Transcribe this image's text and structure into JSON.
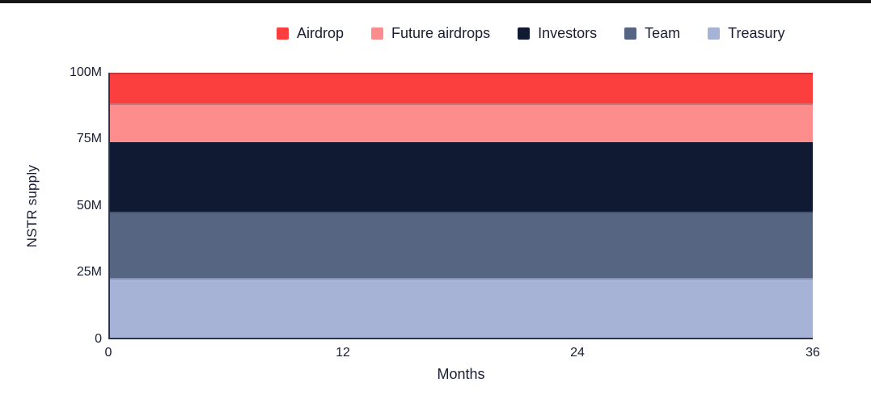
{
  "page": {
    "background": "#ffffff",
    "top_bar_color": "#161616",
    "text_color": "#1A1D33",
    "axis_color": "#2B3252"
  },
  "chart_data": {
    "type": "area",
    "stacked": true,
    "title": "",
    "xlabel": "Months",
    "ylabel": "NSTR supply",
    "x": [
      0,
      12,
      24,
      36
    ],
    "xlim": [
      0,
      36
    ],
    "ylim_millions": [
      0,
      100
    ],
    "value_unit": "M",
    "grid": false,
    "legend_position": "top",
    "series": [
      {
        "name": "Airdrop",
        "color": "#FB3E3E",
        "values": [
          11.7,
          11.7,
          11.7,
          11.7
        ]
      },
      {
        "name": "Future airdrops",
        "color": "#FD8D8D",
        "values": [
          14.4,
          14.4,
          14.4,
          14.4
        ]
      },
      {
        "name": "Investors",
        "color": "#101A33",
        "values": [
          26.3,
          26.3,
          26.3,
          26.3
        ]
      },
      {
        "name": "Team",
        "color": "#566581",
        "values": [
          25.0,
          25.0,
          25.0,
          25.0
        ]
      },
      {
        "name": "Treasury",
        "color": "#A6B3D7",
        "values": [
          22.6,
          22.6,
          22.6,
          22.6
        ]
      }
    ],
    "yticks": [
      {
        "label": "100M",
        "value": 100
      },
      {
        "label": "75M",
        "value": 75
      },
      {
        "label": "50M",
        "value": 50
      },
      {
        "label": "25M",
        "value": 25
      },
      {
        "label": "0",
        "value": 0
      }
    ],
    "xticks": [
      {
        "label": "0",
        "value": 0
      },
      {
        "label": "12",
        "value": 12
      },
      {
        "label": "24",
        "value": 24
      },
      {
        "label": "36",
        "value": 36
      }
    ]
  },
  "legend": {
    "items": [
      {
        "label": "Airdrop"
      },
      {
        "label": "Future airdrops"
      },
      {
        "label": "Investors"
      },
      {
        "label": "Team"
      },
      {
        "label": "Treasury"
      }
    ]
  }
}
